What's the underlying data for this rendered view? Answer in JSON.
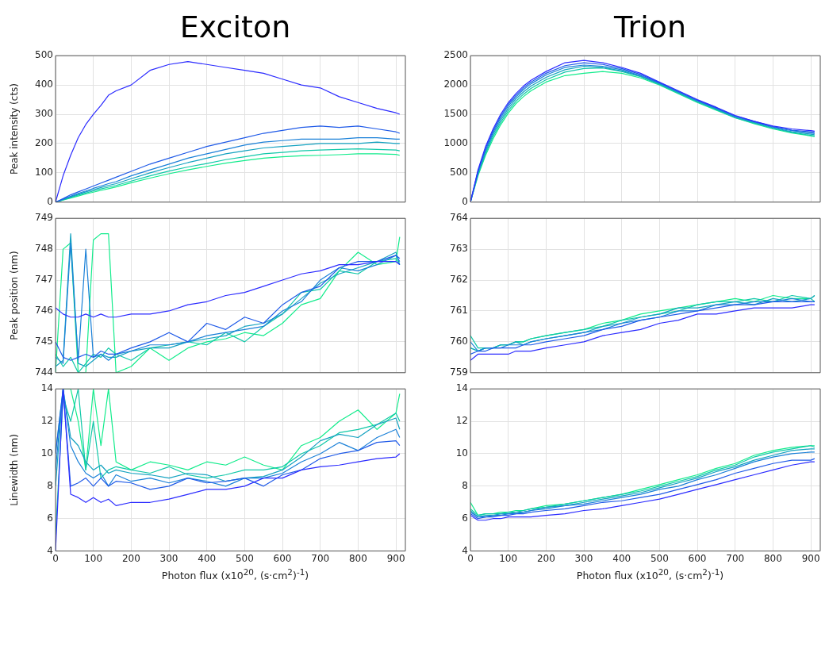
{
  "chart_data": [
    {
      "type": "line",
      "title": "Exciton",
      "ylabel": "Peak intensity (cts)",
      "x": [
        0,
        20,
        40,
        60,
        80,
        100,
        120,
        140,
        160,
        200,
        250,
        300,
        350,
        400,
        450,
        500,
        550,
        600,
        650,
        700,
        750,
        800,
        850,
        900,
        910
      ],
      "xlim": [
        0,
        925
      ],
      "xticks": [
        0,
        100,
        200,
        300,
        400,
        500,
        600,
        700,
        800,
        900
      ],
      "ylim": [
        0,
        500
      ],
      "yticks": [
        0,
        100,
        200,
        300,
        400,
        500
      ],
      "grid": true,
      "tick_labels": "y",
      "series": [
        {
          "color": "#2b2bff",
          "values": [
            0,
            90,
            160,
            220,
            265,
            300,
            330,
            365,
            380,
            400,
            450,
            470,
            480,
            470,
            460,
            450,
            440,
            420,
            400,
            390,
            360,
            340,
            320,
            305,
            300
          ]
        },
        {
          "color": "#1f5ae8",
          "values": [
            0,
            12,
            25,
            35,
            45,
            55,
            65,
            75,
            85,
            105,
            130,
            150,
            170,
            190,
            205,
            220,
            235,
            245,
            255,
            260,
            255,
            260,
            250,
            240,
            235
          ]
        },
        {
          "color": "#1a80d8",
          "values": [
            0,
            10,
            20,
            30,
            38,
            47,
            55,
            63,
            70,
            90,
            110,
            130,
            150,
            165,
            180,
            195,
            205,
            210,
            215,
            215,
            215,
            220,
            220,
            215,
            215
          ]
        },
        {
          "color": "#14a2c0",
          "values": [
            0,
            9,
            18,
            27,
            35,
            42,
            50,
            57,
            63,
            80,
            100,
            118,
            135,
            150,
            165,
            175,
            185,
            190,
            195,
            200,
            200,
            200,
            205,
            200,
            200
          ]
        },
        {
          "color": "#10c8a8",
          "values": [
            0,
            8,
            16,
            24,
            31,
            38,
            45,
            51,
            57,
            72,
            90,
            106,
            120,
            132,
            145,
            155,
            165,
            170,
            175,
            178,
            180,
            182,
            180,
            178,
            175
          ]
        },
        {
          "color": "#12ec8c",
          "values": [
            0,
            7,
            14,
            21,
            28,
            34,
            40,
            46,
            52,
            66,
            82,
            97,
            110,
            122,
            133,
            142,
            150,
            155,
            158,
            160,
            162,
            165,
            165,
            163,
            160
          ]
        }
      ]
    },
    {
      "type": "line",
      "title": "Trion",
      "x": [
        0,
        20,
        40,
        60,
        80,
        100,
        120,
        140,
        160,
        200,
        250,
        300,
        350,
        400,
        450,
        500,
        550,
        600,
        650,
        700,
        750,
        800,
        850,
        900,
        910
      ],
      "xlim": [
        0,
        925
      ],
      "xticks": [
        0,
        100,
        200,
        300,
        400,
        500,
        600,
        700,
        800,
        900
      ],
      "ylim": [
        0,
        2500
      ],
      "yticks": [
        0,
        500,
        1000,
        1500,
        2000,
        2500
      ],
      "grid": true,
      "tick_labels": "y",
      "series": [
        {
          "color": "#2b2bff",
          "values": [
            0,
            550,
            950,
            1250,
            1500,
            1700,
            1850,
            1980,
            2080,
            2230,
            2380,
            2420,
            2380,
            2300,
            2200,
            2050,
            1900,
            1750,
            1620,
            1480,
            1380,
            1300,
            1250,
            1220,
            1210
          ]
        },
        {
          "color": "#1f5ae8",
          "values": [
            0,
            530,
            920,
            1220,
            1470,
            1670,
            1820,
            1950,
            2050,
            2200,
            2330,
            2380,
            2350,
            2280,
            2180,
            2040,
            1890,
            1740,
            1610,
            1470,
            1380,
            1290,
            1230,
            1200,
            1190
          ]
        },
        {
          "color": "#1a80d8",
          "values": [
            0,
            510,
            890,
            1190,
            1440,
            1640,
            1790,
            1920,
            2020,
            2170,
            2300,
            2340,
            2320,
            2260,
            2160,
            2030,
            1880,
            1730,
            1600,
            1460,
            1370,
            1280,
            1220,
            1180,
            1170
          ]
        },
        {
          "color": "#14a2c0",
          "values": [
            0,
            490,
            860,
            1160,
            1400,
            1600,
            1760,
            1880,
            1980,
            2130,
            2260,
            2320,
            2300,
            2240,
            2150,
            2020,
            1870,
            1720,
            1590,
            1450,
            1360,
            1270,
            1200,
            1160,
            1150
          ]
        },
        {
          "color": "#10c8a8",
          "values": [
            0,
            470,
            830,
            1120,
            1360,
            1560,
            1720,
            1840,
            1940,
            2090,
            2220,
            2280,
            2290,
            2230,
            2140,
            2010,
            1860,
            1710,
            1580,
            1440,
            1350,
            1260,
            1190,
            1140,
            1130
          ]
        },
        {
          "color": "#12ec8c",
          "values": [
            0,
            450,
            800,
            1080,
            1320,
            1520,
            1680,
            1800,
            1900,
            2050,
            2160,
            2200,
            2230,
            2200,
            2120,
            2000,
            1850,
            1700,
            1570,
            1440,
            1340,
            1250,
            1180,
            1130,
            1120
          ]
        }
      ]
    },
    {
      "type": "line",
      "ylabel": "Peak position (nm)",
      "x": [
        0,
        20,
        40,
        60,
        80,
        100,
        120,
        140,
        160,
        200,
        250,
        300,
        350,
        400,
        450,
        500,
        550,
        600,
        650,
        700,
        750,
        800,
        850,
        900,
        910
      ],
      "xlim": [
        0,
        925
      ],
      "xticks": [
        0,
        100,
        200,
        300,
        400,
        500,
        600,
        700,
        800,
        900
      ],
      "ylim": [
        744,
        749
      ],
      "yticks": [
        744,
        745,
        746,
        747,
        748,
        749
      ],
      "grid": true,
      "tick_labels": "y",
      "series": [
        {
          "color": "#2b2bff",
          "values": [
            746.1,
            745.9,
            745.8,
            745.8,
            745.9,
            745.8,
            745.9,
            745.8,
            745.8,
            745.9,
            745.9,
            746.0,
            746.2,
            746.3,
            746.5,
            746.6,
            746.8,
            747.0,
            747.2,
            747.3,
            747.5,
            747.5,
            747.6,
            747.6,
            747.5
          ]
        },
        {
          "color": "#1f5ae8",
          "values": [
            745.0,
            744.5,
            744.4,
            744.5,
            744.6,
            744.5,
            744.7,
            744.6,
            744.6,
            744.8,
            745.0,
            745.3,
            745.0,
            745.6,
            745.4,
            745.8,
            745.6,
            746.2,
            746.6,
            746.8,
            747.4,
            747.6,
            747.6,
            747.8,
            747.7
          ]
        },
        {
          "color": "#1a80d8",
          "values": [
            744.5,
            744.3,
            748.2,
            744.4,
            748.0,
            744.5,
            744.6,
            744.4,
            744.6,
            744.7,
            744.9,
            744.9,
            745.0,
            745.2,
            745.3,
            745.4,
            745.5,
            746.0,
            746.3,
            747.0,
            747.4,
            747.3,
            747.5,
            747.8,
            747.6
          ]
        },
        {
          "color": "#14a2c0",
          "values": [
            744.2,
            744.4,
            748.5,
            744.3,
            744.2,
            744.4,
            744.6,
            744.5,
            744.5,
            744.7,
            744.8,
            744.8,
            745.0,
            745.1,
            745.2,
            745.5,
            745.6,
            745.9,
            746.4,
            746.9,
            747.2,
            747.4,
            747.6,
            747.9,
            747.5
          ]
        },
        {
          "color": "#10c8a8",
          "values": [
            744.6,
            744.2,
            744.5,
            744.0,
            744.3,
            744.6,
            744.5,
            744.8,
            744.6,
            744.4,
            744.8,
            744.9,
            745.0,
            744.9,
            745.3,
            745.0,
            745.5,
            745.9,
            746.6,
            746.7,
            747.3,
            747.2,
            747.6,
            747.7,
            747.5
          ]
        },
        {
          "color": "#12ec8c",
          "values": [
            744.0,
            748.0,
            748.2,
            744.0,
            744.0,
            748.3,
            748.5,
            748.5,
            744.0,
            744.2,
            744.8,
            744.4,
            744.8,
            745.0,
            745.1,
            745.3,
            745.2,
            745.6,
            746.2,
            746.4,
            747.3,
            747.9,
            747.5,
            747.6,
            748.4
          ]
        }
      ]
    },
    {
      "type": "line",
      "x": [
        0,
        20,
        40,
        60,
        80,
        100,
        120,
        140,
        160,
        200,
        250,
        300,
        350,
        400,
        450,
        500,
        550,
        600,
        650,
        700,
        750,
        800,
        850,
        900,
        910
      ],
      "xlim": [
        0,
        925
      ],
      "xticks": [
        0,
        100,
        200,
        300,
        400,
        500,
        600,
        700,
        800,
        900
      ],
      "ylim": [
        759,
        764
      ],
      "yticks": [
        759,
        760,
        761,
        762,
        763,
        764
      ],
      "grid": true,
      "tick_labels": "y",
      "series": [
        {
          "color": "#2b2bff",
          "values": [
            759.4,
            759.6,
            759.6,
            759.6,
            759.6,
            759.6,
            759.7,
            759.7,
            759.7,
            759.8,
            759.9,
            760.0,
            760.2,
            760.3,
            760.4,
            760.6,
            760.7,
            760.9,
            760.9,
            761.0,
            761.1,
            761.1,
            761.1,
            761.2,
            761.2
          ]
        },
        {
          "color": "#1f5ae8",
          "values": [
            759.6,
            759.7,
            759.7,
            759.8,
            759.8,
            759.8,
            759.8,
            759.9,
            759.9,
            760.0,
            760.1,
            760.2,
            760.4,
            760.5,
            760.7,
            760.8,
            760.9,
            761.0,
            761.1,
            761.2,
            761.2,
            761.3,
            761.3,
            761.3,
            761.3
          ]
        },
        {
          "color": "#1a80d8",
          "values": [
            760.0,
            759.7,
            759.8,
            759.8,
            759.8,
            759.9,
            759.9,
            759.9,
            760.0,
            760.1,
            760.2,
            760.3,
            760.4,
            760.6,
            760.7,
            760.8,
            761.0,
            761.0,
            761.2,
            761.2,
            761.3,
            761.3,
            761.4,
            761.3,
            761.3
          ]
        },
        {
          "color": "#14a2c0",
          "values": [
            759.8,
            759.7,
            759.8,
            759.8,
            759.9,
            759.9,
            760.0,
            759.9,
            760.0,
            760.1,
            760.2,
            760.3,
            760.5,
            760.6,
            760.8,
            760.9,
            761.1,
            761.1,
            761.2,
            761.3,
            761.2,
            761.4,
            761.3,
            761.4,
            761.5
          ]
        },
        {
          "color": "#10c8a8",
          "values": [
            760.2,
            759.8,
            759.8,
            759.8,
            759.9,
            759.9,
            760.0,
            760.0,
            760.1,
            760.2,
            760.3,
            760.4,
            760.5,
            760.7,
            760.8,
            760.9,
            761.0,
            761.2,
            761.3,
            761.3,
            761.4,
            761.3,
            761.5,
            761.4,
            761.3
          ]
        },
        {
          "color": "#12ec8c",
          "values": [
            759.8,
            759.7,
            759.8,
            759.8,
            759.9,
            759.9,
            760.0,
            760.0,
            760.1,
            760.2,
            760.3,
            760.4,
            760.6,
            760.7,
            760.9,
            761.0,
            761.1,
            761.2,
            761.3,
            761.4,
            761.3,
            761.5,
            761.4,
            761.4,
            761.5
          ]
        }
      ]
    },
    {
      "type": "line",
      "ylabel": "Linewidth (nm)",
      "xlabel": "Photon flux (x10$^{20}$, (s·cm$^{2}$)$^{-1}$)",
      "x": [
        0,
        20,
        40,
        60,
        80,
        100,
        120,
        140,
        160,
        200,
        250,
        300,
        350,
        400,
        450,
        500,
        550,
        600,
        650,
        700,
        750,
        800,
        850,
        900,
        910
      ],
      "xlim": [
        0,
        925
      ],
      "xticks": [
        0,
        100,
        200,
        300,
        400,
        500,
        600,
        700,
        800,
        900
      ],
      "ylim": [
        4,
        14
      ],
      "yticks": [
        4,
        6,
        8,
        10,
        12,
        14
      ],
      "grid": true,
      "series": [
        {
          "color": "#2b2bff",
          "values": [
            4.0,
            14.0,
            7.5,
            7.3,
            7.0,
            7.3,
            7.0,
            7.2,
            6.8,
            7.0,
            7.0,
            7.2,
            7.5,
            7.8,
            7.8,
            8.0,
            8.5,
            8.5,
            9.0,
            9.2,
            9.3,
            9.5,
            9.7,
            9.8,
            10.0
          ]
        },
        {
          "color": "#1f5ae8",
          "values": [
            10.0,
            14.0,
            8.0,
            8.2,
            8.5,
            8.0,
            8.5,
            8.0,
            8.3,
            8.2,
            7.8,
            8.0,
            8.5,
            8.2,
            8.3,
            8.5,
            8.0,
            8.7,
            9.0,
            9.7,
            10.0,
            10.2,
            10.7,
            10.8,
            10.5
          ]
        },
        {
          "color": "#1a80d8",
          "values": [
            9.0,
            14.0,
            10.5,
            9.5,
            8.8,
            8.5,
            8.8,
            8.0,
            8.7,
            8.3,
            8.5,
            8.2,
            8.5,
            8.3,
            8.0,
            8.5,
            8.5,
            8.8,
            9.5,
            10.0,
            10.7,
            10.2,
            11.0,
            11.5,
            11.0
          ]
        },
        {
          "color": "#14a2c0",
          "values": [
            8.0,
            14.0,
            11.0,
            10.5,
            9.5,
            9.0,
            9.3,
            8.8,
            9.0,
            8.8,
            8.7,
            8.5,
            8.8,
            8.7,
            8.3,
            8.5,
            8.6,
            9.0,
            9.8,
            10.8,
            11.2,
            11.0,
            11.8,
            12.2,
            11.5
          ]
        },
        {
          "color": "#10c8a8",
          "values": [
            5.0,
            13.5,
            12.0,
            14.0,
            9.0,
            12.0,
            8.5,
            9.0,
            9.2,
            9.0,
            8.8,
            9.2,
            8.7,
            8.5,
            8.7,
            9.0,
            9.0,
            9.2,
            10.0,
            10.5,
            11.3,
            11.5,
            11.8,
            12.5,
            12.0
          ]
        },
        {
          "color": "#12ec8c",
          "values": [
            10.0,
            14.0,
            14.0,
            12.0,
            9.0,
            14.0,
            10.5,
            14.0,
            9.5,
            9.0,
            9.5,
            9.3,
            9.0,
            9.5,
            9.3,
            9.8,
            9.3,
            9.0,
            10.5,
            11.0,
            12.0,
            12.7,
            11.5,
            12.5,
            13.7
          ]
        }
      ]
    },
    {
      "type": "line",
      "xlabel": "Photon flux (x10$^{20}$, (s·cm$^{2}$)$^{-1}$)",
      "x": [
        0,
        20,
        40,
        60,
        80,
        100,
        120,
        140,
        160,
        200,
        250,
        300,
        350,
        400,
        450,
        500,
        550,
        600,
        650,
        700,
        750,
        800,
        850,
        900,
        910
      ],
      "xlim": [
        0,
        925
      ],
      "xticks": [
        0,
        100,
        200,
        300,
        400,
        500,
        600,
        700,
        800,
        900
      ],
      "ylim": [
        4,
        14
      ],
      "yticks": [
        4,
        6,
        8,
        10,
        12,
        14
      ],
      "grid": true,
      "series": [
        {
          "color": "#2b2bff",
          "values": [
            6.2,
            5.9,
            5.9,
            6.0,
            6.0,
            6.1,
            6.1,
            6.1,
            6.1,
            6.2,
            6.3,
            6.5,
            6.6,
            6.8,
            7.0,
            7.2,
            7.5,
            7.8,
            8.1,
            8.4,
            8.7,
            9.0,
            9.3,
            9.5,
            9.5
          ]
        },
        {
          "color": "#1f5ae8",
          "values": [
            6.3,
            6.0,
            6.1,
            6.1,
            6.2,
            6.2,
            6.3,
            6.3,
            6.4,
            6.5,
            6.6,
            6.8,
            7.0,
            7.1,
            7.3,
            7.5,
            7.8,
            8.1,
            8.4,
            8.8,
            9.1,
            9.4,
            9.6,
            9.6,
            9.7
          ]
        },
        {
          "color": "#1a80d8",
          "values": [
            6.4,
            6.1,
            6.1,
            6.2,
            6.2,
            6.3,
            6.3,
            6.4,
            6.5,
            6.6,
            6.8,
            6.9,
            7.1,
            7.3,
            7.5,
            7.8,
            8.0,
            8.4,
            8.7,
            9.1,
            9.5,
            9.8,
            10.0,
            10.1,
            10.1
          ]
        },
        {
          "color": "#14a2c0",
          "values": [
            6.5,
            6.1,
            6.2,
            6.2,
            6.3,
            6.3,
            6.4,
            6.4,
            6.5,
            6.7,
            6.8,
            7.0,
            7.2,
            7.4,
            7.6,
            7.9,
            8.2,
            8.5,
            8.9,
            9.2,
            9.6,
            9.9,
            10.2,
            10.3,
            10.3
          ]
        },
        {
          "color": "#10c8a8",
          "values": [
            6.6,
            6.2,
            6.3,
            6.3,
            6.3,
            6.4,
            6.4,
            6.5,
            6.6,
            6.7,
            6.9,
            7.1,
            7.3,
            7.5,
            7.7,
            8.0,
            8.3,
            8.6,
            9.0,
            9.3,
            9.8,
            10.1,
            10.3,
            10.5,
            10.4
          ]
        },
        {
          "color": "#12ec8c",
          "values": [
            7.0,
            6.2,
            6.3,
            6.3,
            6.4,
            6.4,
            6.5,
            6.5,
            6.6,
            6.8,
            6.9,
            7.1,
            7.3,
            7.5,
            7.8,
            8.1,
            8.4,
            8.7,
            9.1,
            9.4,
            9.9,
            10.2,
            10.4,
            10.5,
            10.5
          ]
        }
      ]
    }
  ]
}
